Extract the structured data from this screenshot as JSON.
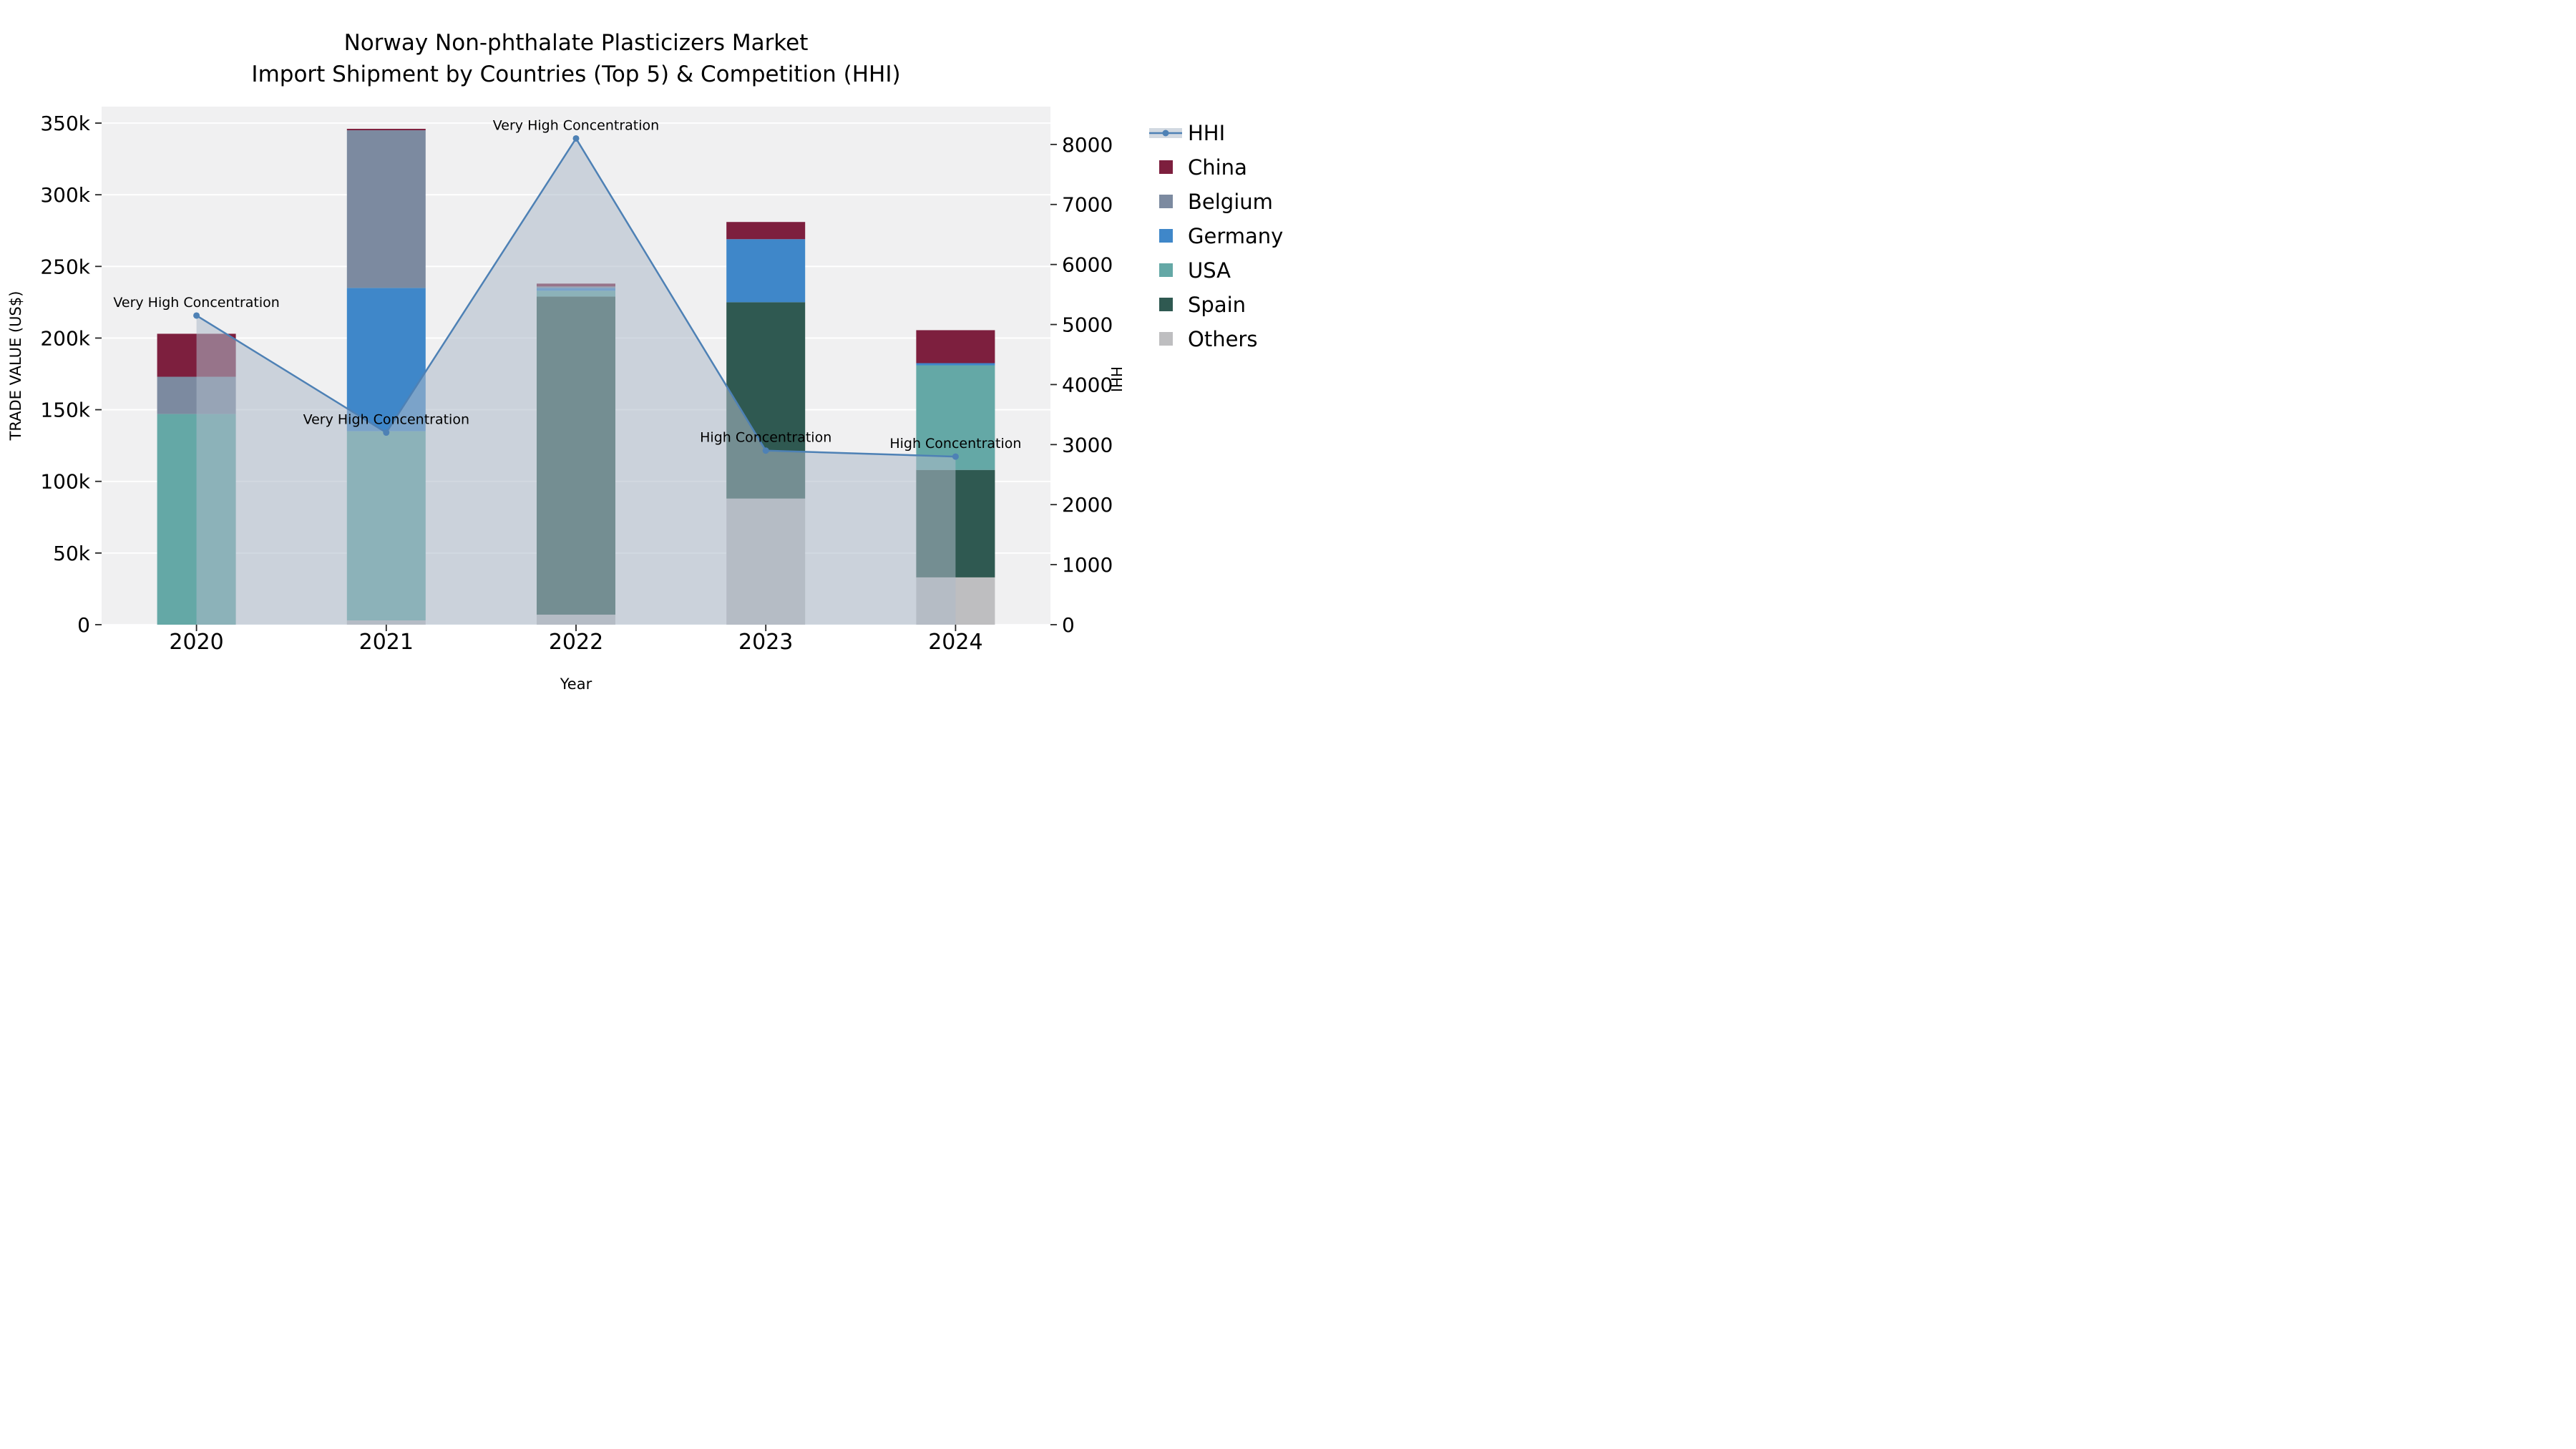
{
  "title": {
    "line1": "Norway Non-phthalate Plasticizers Market",
    "line2": "Import Shipment by Countries (Top 5) & Competition (HHI)"
  },
  "axes": {
    "y_left_label": "TRADE VALUE (US$)",
    "y_right_label": "HHI",
    "x_label": "Year",
    "y_left_ticks": [
      "0",
      "50k",
      "100k",
      "150k",
      "200k",
      "250k",
      "300k",
      "350k"
    ],
    "y_right_ticks": [
      "0",
      "1000",
      "2000",
      "3000",
      "4000",
      "5000",
      "6000",
      "7000",
      "8000"
    ]
  },
  "legend": {
    "items": [
      {
        "label": "HHI",
        "type": "line",
        "color": "#4e81b5"
      },
      {
        "label": "China",
        "type": "swatch",
        "color": "#7d1f3e"
      },
      {
        "label": "Belgium",
        "type": "swatch",
        "color": "#7c8aa0"
      },
      {
        "label": "Germany",
        "type": "swatch",
        "color": "#3f87c9"
      },
      {
        "label": "USA",
        "type": "swatch",
        "color": "#64a8a6"
      },
      {
        "label": "Spain",
        "type": "swatch",
        "color": "#2f5951"
      },
      {
        "label": "Others",
        "type": "swatch",
        "color": "#bebec0"
      }
    ]
  },
  "chart_data": {
    "type": "combo: stacked bar (left axis) + line with area fill (right axis)",
    "x": [
      "2020",
      "2021",
      "2022",
      "2023",
      "2024"
    ],
    "xlabel": "Year",
    "ylabel_left": "TRADE VALUE (US$)",
    "ylabel_right": "HHI",
    "ylim_left": [
      0,
      350000
    ],
    "ylim_right": [
      0,
      8000
    ],
    "grid": "horizontal white gridlines on light gray plot background",
    "legend_position": "right, outside plot",
    "bar_stack_order_bottom_to_top": [
      "Others",
      "Spain",
      "USA",
      "Germany",
      "Belgium",
      "China"
    ],
    "bar_series": [
      {
        "name": "Others",
        "color": "#bebec0",
        "values": [
          0,
          3000,
          7000,
          88000,
          33000
        ]
      },
      {
        "name": "Spain",
        "color": "#2f5951",
        "values": [
          0,
          0,
          222000,
          137000,
          75000
        ]
      },
      {
        "name": "USA",
        "color": "#64a8a6",
        "values": [
          147000,
          132000,
          4000,
          0,
          73000
        ]
      },
      {
        "name": "Germany",
        "color": "#3f87c9",
        "values": [
          0,
          100000,
          2000,
          44000,
          1500
        ]
      },
      {
        "name": "Belgium",
        "color": "#7c8aa0",
        "values": [
          26000,
          110000,
          1000,
          0,
          0
        ]
      },
      {
        "name": "China",
        "color": "#7d1f3e",
        "values": [
          30000,
          1000,
          2000,
          12000,
          23000
        ]
      }
    ],
    "line_series": {
      "name": "HHI",
      "axis": "right",
      "color": "#4e81b5",
      "area_fill": "rgba(173,186,201,0.55)",
      "values": [
        5150,
        3200,
        8100,
        2900,
        2800
      ]
    },
    "annotations": [
      {
        "x": "2020",
        "text": "Very High Concentration"
      },
      {
        "x": "2021",
        "text": "Very High Concentration"
      },
      {
        "x": "2022",
        "text": "Very High Concentration"
      },
      {
        "x": "2023",
        "text": "High Concentration"
      },
      {
        "x": "2024",
        "text": "High Concentration"
      }
    ]
  }
}
